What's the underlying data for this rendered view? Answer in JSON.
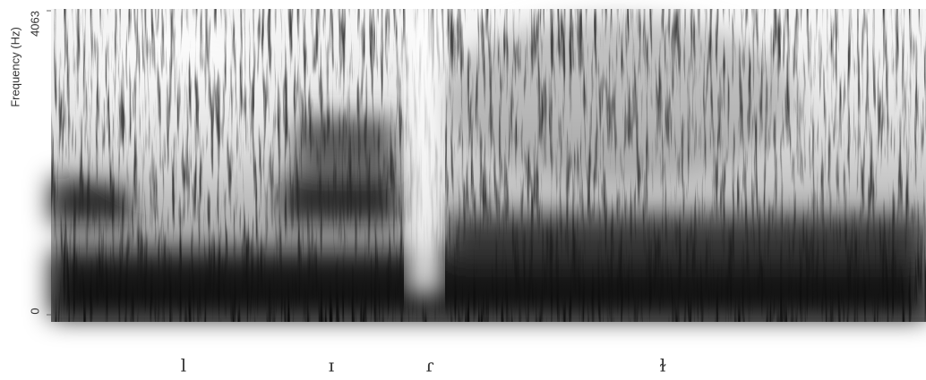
{
  "chart_data": {
    "type": "spectrogram",
    "y_label": "Frequency (Hz)",
    "ylim": [
      0,
      4063
    ],
    "yticks": [
      0,
      4063
    ],
    "categories": [
      "l",
      "ɪ",
      "ɾ",
      "ɫ"
    ]
  }
}
